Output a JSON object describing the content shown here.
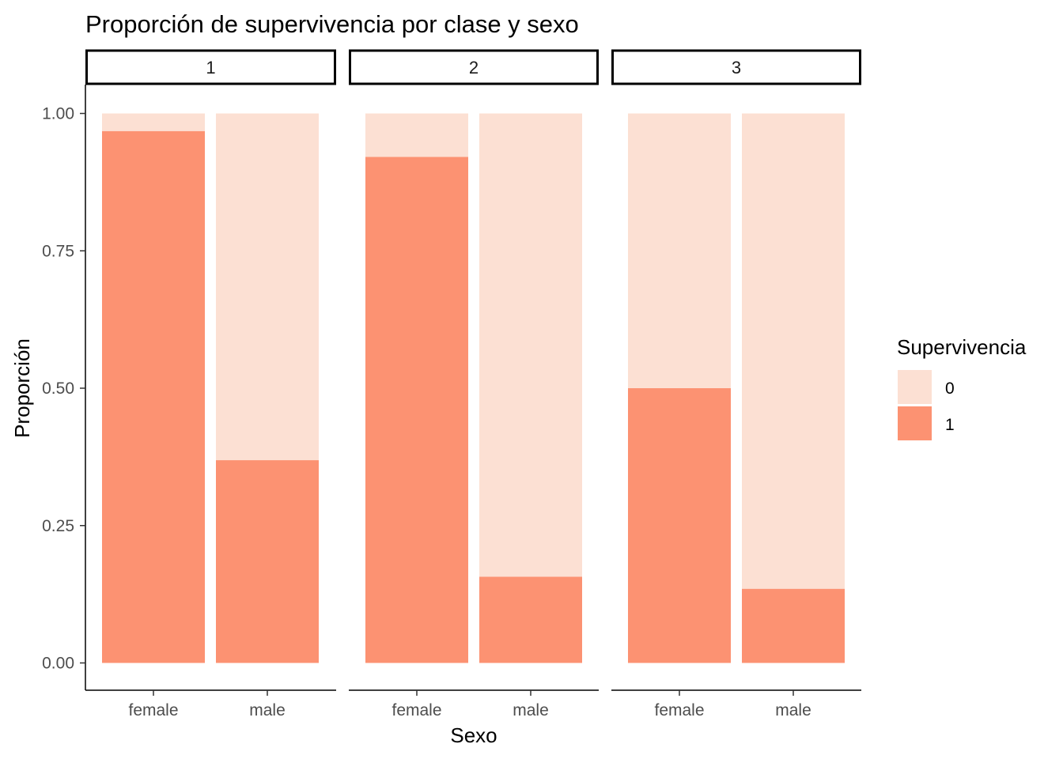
{
  "chart_data": {
    "type": "bar",
    "stacked": true,
    "title": "Proporción de supervivencia por clase y sexo",
    "xlabel": "Sexo",
    "ylabel": "Proporción",
    "ylim": [
      0,
      1
    ],
    "yticks": [
      "0.00",
      "0.25",
      "0.50",
      "0.75",
      "1.00"
    ],
    "facets": [
      "1",
      "2",
      "3"
    ],
    "categories": [
      "female",
      "male"
    ],
    "series": [
      {
        "name": "0",
        "color": "#fce0d3",
        "values": [
          [
            0.032,
            0.631
          ],
          [
            0.079,
            0.843
          ],
          [
            0.5,
            0.865
          ]
        ]
      },
      {
        "name": "1",
        "color": "#fc9272",
        "values": [
          [
            0.968,
            0.369
          ],
          [
            0.921,
            0.157
          ],
          [
            0.5,
            0.135
          ]
        ]
      }
    ],
    "legend": {
      "title": "Supervivencia",
      "position": "right"
    },
    "grid": false
  }
}
